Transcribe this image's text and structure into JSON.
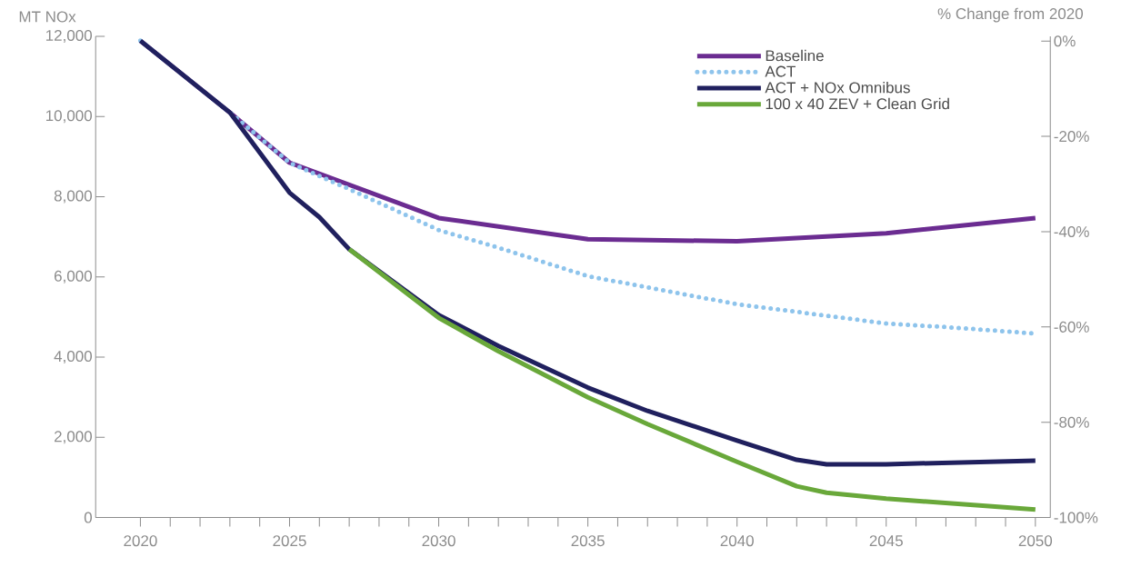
{
  "chart_data": {
    "type": "line",
    "ylabel": "MT NOx",
    "y2label": "% Change from 2020",
    "xlim": [
      2018.5,
      2050.5
    ],
    "xticks": [
      2020,
      {
        "value": 2021,
        "label": null
      },
      {
        "value": 2022,
        "label": null
      },
      {
        "value": 2023,
        "label": null
      },
      {
        "value": 2024,
        "label": null
      },
      2025,
      {
        "value": 2026,
        "label": null
      },
      {
        "value": 2027,
        "label": null
      },
      {
        "value": 2028,
        "label": null
      },
      {
        "value": 2029,
        "label": null
      },
      2030,
      {
        "value": 2031,
        "label": null
      },
      {
        "value": 2032,
        "label": null
      },
      {
        "value": 2033,
        "label": null
      },
      {
        "value": 2034,
        "label": null
      },
      2035,
      {
        "value": 2036,
        "label": null
      },
      {
        "value": 2037,
        "label": null
      },
      {
        "value": 2038,
        "label": null
      },
      {
        "value": 2039,
        "label": null
      },
      2040,
      {
        "value": 2041,
        "label": null
      },
      {
        "value": 2042,
        "label": null
      },
      {
        "value": 2043,
        "label": null
      },
      {
        "value": 2044,
        "label": null
      },
      2045,
      {
        "value": 2046,
        "label": null
      },
      {
        "value": 2047,
        "label": null
      },
      {
        "value": 2048,
        "label": null
      },
      {
        "value": 2049,
        "label": null
      },
      2050
    ],
    "ylim": [
      0,
      12000
    ],
    "yticks": [
      {
        "value": 0,
        "label": "0"
      },
      {
        "value": 2000,
        "label": "2,000"
      },
      {
        "value": 4000,
        "label": "4,000"
      },
      {
        "value": 6000,
        "label": "6,000"
      },
      {
        "value": 8000,
        "label": "8,000"
      },
      {
        "value": 10000,
        "label": "10,000"
      },
      {
        "value": 12000,
        "label": "12,000"
      }
    ],
    "y2lim": [
      -100,
      1
    ],
    "y2ticks": [
      {
        "value": 0,
        "label": "0%"
      },
      {
        "value": -20,
        "label": "-20%"
      },
      {
        "value": -40,
        "label": "-40%"
      },
      {
        "value": -60,
        "label": "-60%"
      },
      {
        "value": -80,
        "label": "-80%"
      },
      {
        "value": -100,
        "label": "-100%"
      }
    ],
    "legend": "top right",
    "grid": false,
    "marker": "none",
    "series": [
      {
        "name": "Baseline",
        "color": "#6b2c91",
        "line_style": "solid",
        "x": [
          2020,
          2023,
          2025,
          2030,
          2035,
          2040,
          2045,
          2050
        ],
        "values": [
          11890,
          10100,
          8850,
          7470,
          6940,
          6890,
          7090,
          7470
        ]
      },
      {
        "name": "ACT",
        "color": "#8ec4ec",
        "line_style": "dotted",
        "x": [
          2020,
          2023,
          2025,
          2027,
          2030,
          2032,
          2035,
          2037,
          2040,
          2042,
          2045,
          2047,
          2050
        ],
        "values": [
          11890,
          10100,
          8850,
          8190,
          7170,
          6730,
          6020,
          5740,
          5320,
          5130,
          4840,
          4750,
          4590
        ]
      },
      {
        "name": "ACT + NOx Omnibus",
        "color": "#20205e",
        "line_style": "solid",
        "x": [
          2020,
          2023,
          2025,
          2026,
          2027,
          2030,
          2032,
          2035,
          2037,
          2040,
          2042,
          2043,
          2045,
          2050
        ],
        "values": [
          11890,
          10100,
          8100,
          7490,
          6690,
          5050,
          4280,
          3240,
          2660,
          1920,
          1440,
          1330,
          1330,
          1420
        ]
      },
      {
        "name": "100 x 40 ZEV + Clean Grid",
        "color": "#69a83a",
        "line_style": "solid",
        "x": [
          2027,
          2030,
          2032,
          2035,
          2037,
          2040,
          2042,
          2043,
          2045,
          2050
        ],
        "values": [
          6690,
          4980,
          4150,
          3000,
          2330,
          1390,
          780,
          620,
          470,
          200
        ]
      }
    ]
  }
}
